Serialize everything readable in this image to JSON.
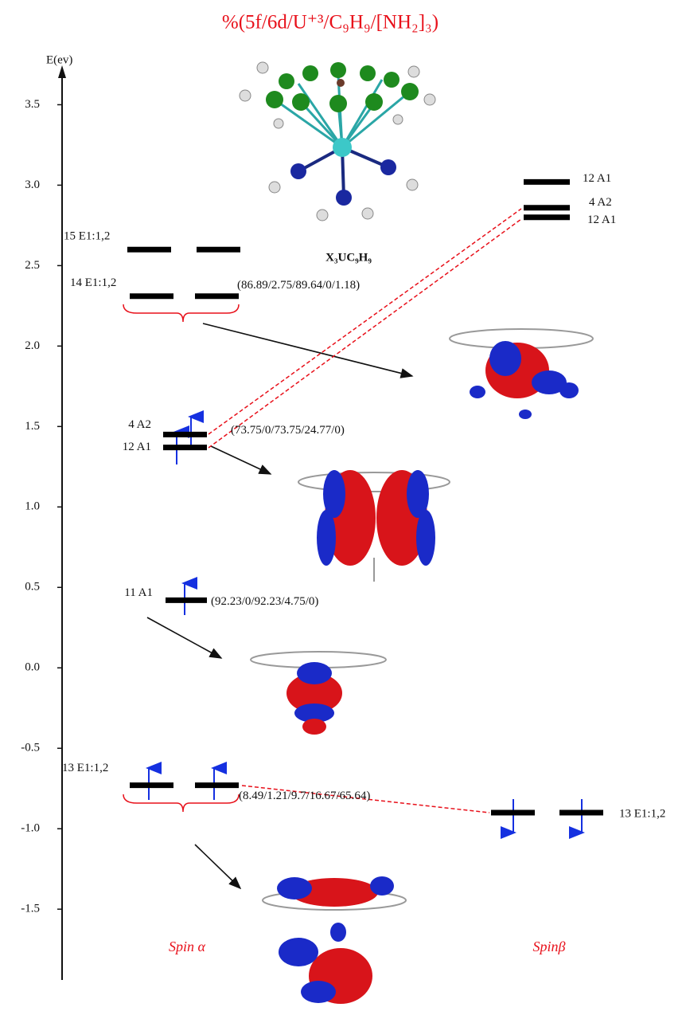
{
  "title": "%(5f/6d/U⁺³/C₉H₉/[NH₂]₃)",
  "axis": {
    "label": "E(ev)",
    "ylim": [
      -1.94,
      3.73
    ],
    "yticks": [
      {
        "value": 3.5,
        "label": "3.5"
      },
      {
        "value": 3,
        "label": "3.0"
      },
      {
        "value": 2.5,
        "label": "2.5"
      },
      {
        "value": 2,
        "label": "2.0"
      },
      {
        "value": 1.5,
        "label": "1.5"
      },
      {
        "value": 1,
        "label": "1.0"
      },
      {
        "value": 0.5,
        "label": "0.5"
      },
      {
        "value": 0,
        "label": "0.0"
      },
      {
        "value": -0.5,
        "label": "-0.5"
      },
      {
        "value": -1,
        "label": "-1.0"
      },
      {
        "value": -1.5,
        "label": "-1.5"
      }
    ]
  },
  "levels": [
    {
      "label": "15 E1:1,2",
      "energy": 2.6
    },
    {
      "label": "14 E1:1,2",
      "energy": 2.31,
      "composition": "(86.89/2.75/89.64/0/1.18)"
    },
    {
      "label": "4 A2",
      "energy": 1.45,
      "composition": "(73.75/0/73.75/24.77/0)"
    },
    {
      "label": "12 A1",
      "energy": 1.37
    },
    {
      "label": "11 A1",
      "energy": 0.42,
      "composition": "(92.23/0/92.23/4.75/0)"
    },
    {
      "label": "13 E1:1,2",
      "energy": -0.73,
      "composition": "(8.49/1.21/9.7/16.67/65.64)"
    },
    {
      "label": "13 E1:1,2",
      "energy": -0.9
    },
    {
      "label": "12 A1",
      "energy": 3.02
    },
    {
      "label": "4 A2",
      "energy": 2.86
    },
    {
      "label": "12 A1",
      "energy": 2.8
    }
  ],
  "molecule_label": "X₃UC₉H₉",
  "spin_labels": [
    "Spin α",
    "Spinβ"
  ]
}
